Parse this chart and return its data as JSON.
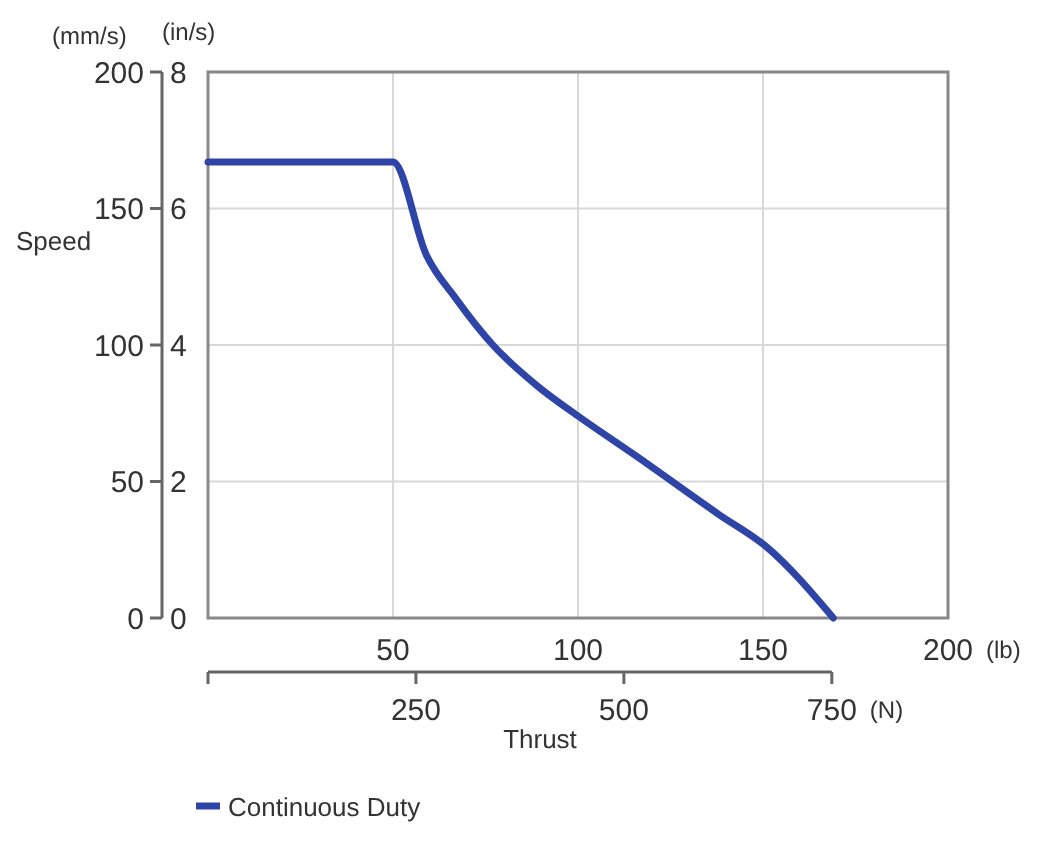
{
  "chart_data": {
    "type": "line",
    "xlabel": "Thrust",
    "ylabel": "Speed",
    "annotations": [
      "(mm/s)",
      "(in/s)",
      "(lb)",
      "(N)"
    ],
    "xlim": [
      0,
      200
    ],
    "xticks": [
      50,
      100,
      150,
      200
    ],
    "x2lim": [
      0,
      750
    ],
    "x2ticks": [
      {
        "value": 0,
        "label": null
      },
      250,
      500,
      750
    ],
    "ylim": [
      0,
      200
    ],
    "yticks": [
      0,
      50,
      100,
      150,
      200
    ],
    "y2lim": [
      0,
      8
    ],
    "y2ticks": [
      0,
      2,
      4,
      6,
      8
    ],
    "grid": true,
    "legend": "bottom",
    "marker": "none",
    "line_style": "solid",
    "series": [
      {
        "name": "Continuous Duty",
        "color": "#2e44a6",
        "x": [
          0,
          50,
          59,
          67,
          77,
          89,
          100,
          115,
          138,
          151,
          169
        ],
        "values": [
          167,
          167,
          133,
          117,
          100,
          85,
          74,
          60,
          38,
          26,
          0
        ]
      }
    ]
  }
}
